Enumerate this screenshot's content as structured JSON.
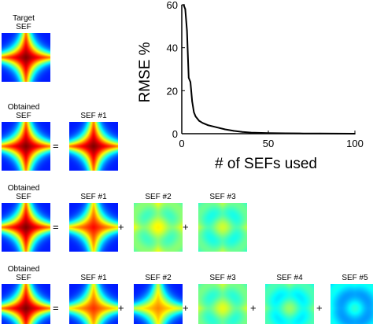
{
  "rows": [
    {
      "label": "Target\nSEF",
      "tiles": [
        {
          "kind": "target",
          "intensity": 1.0
        }
      ]
    },
    {
      "label": "Obtained\nSEF",
      "tiles": [
        {
          "kind": "obtained",
          "intensity": 1.0
        },
        {
          "op": "="
        },
        {
          "title": "SEF #1",
          "kind": "component",
          "intensity": 1.0
        }
      ]
    },
    {
      "label": "Obtained\nSEF",
      "tiles": [
        {
          "kind": "obtained",
          "intensity": 1.0
        },
        {
          "op": "="
        },
        {
          "title": "SEF #1",
          "kind": "component",
          "intensity": 0.85
        },
        {
          "op": "+"
        },
        {
          "title": "SEF #2",
          "kind": "component",
          "intensity": 0.45
        },
        {
          "op": "+"
        },
        {
          "title": "SEF #3",
          "kind": "component",
          "intensity": 0.4
        }
      ]
    },
    {
      "label": "Obtained\nSEF",
      "tiles": [
        {
          "kind": "obtained",
          "intensity": 1.0
        },
        {
          "op": "="
        },
        {
          "title": "SEF #1",
          "kind": "component",
          "intensity": 0.8
        },
        {
          "op": "+"
        },
        {
          "title": "SEF #2",
          "kind": "component",
          "intensity": 0.7
        },
        {
          "op": "+"
        },
        {
          "title": "SEF #3",
          "kind": "component",
          "intensity": 0.42
        },
        {
          "op": "+"
        },
        {
          "title": "SEF #4",
          "kind": "component",
          "intensity": 0.35
        },
        {
          "op": "+"
        },
        {
          "title": "SEF #5",
          "kind": "component",
          "intensity": 0.25
        }
      ]
    }
  ],
  "chart_data": {
    "type": "line",
    "title": "",
    "xlabel": "# of SEFs used",
    "ylabel": "RMSE %",
    "xlim": [
      0,
      100
    ],
    "ylim": [
      0,
      60
    ],
    "xticks": [
      0,
      50,
      100
    ],
    "yticks": [
      0,
      20,
      40,
      60
    ],
    "grid": false,
    "series": [
      {
        "x": [
          1,
          2,
          3,
          4,
          5,
          6,
          7,
          8,
          9,
          10,
          12,
          15,
          20,
          25,
          30,
          35,
          40,
          50,
          60,
          70,
          80,
          90,
          100
        ],
        "y": [
          60,
          58,
          48,
          26,
          24,
          15,
          10,
          8,
          7,
          6,
          5,
          4,
          3,
          2,
          1.3,
          0.8,
          0.5,
          0.3,
          0.2,
          0.1,
          0.1,
          0.05,
          0
        ]
      }
    ]
  }
}
